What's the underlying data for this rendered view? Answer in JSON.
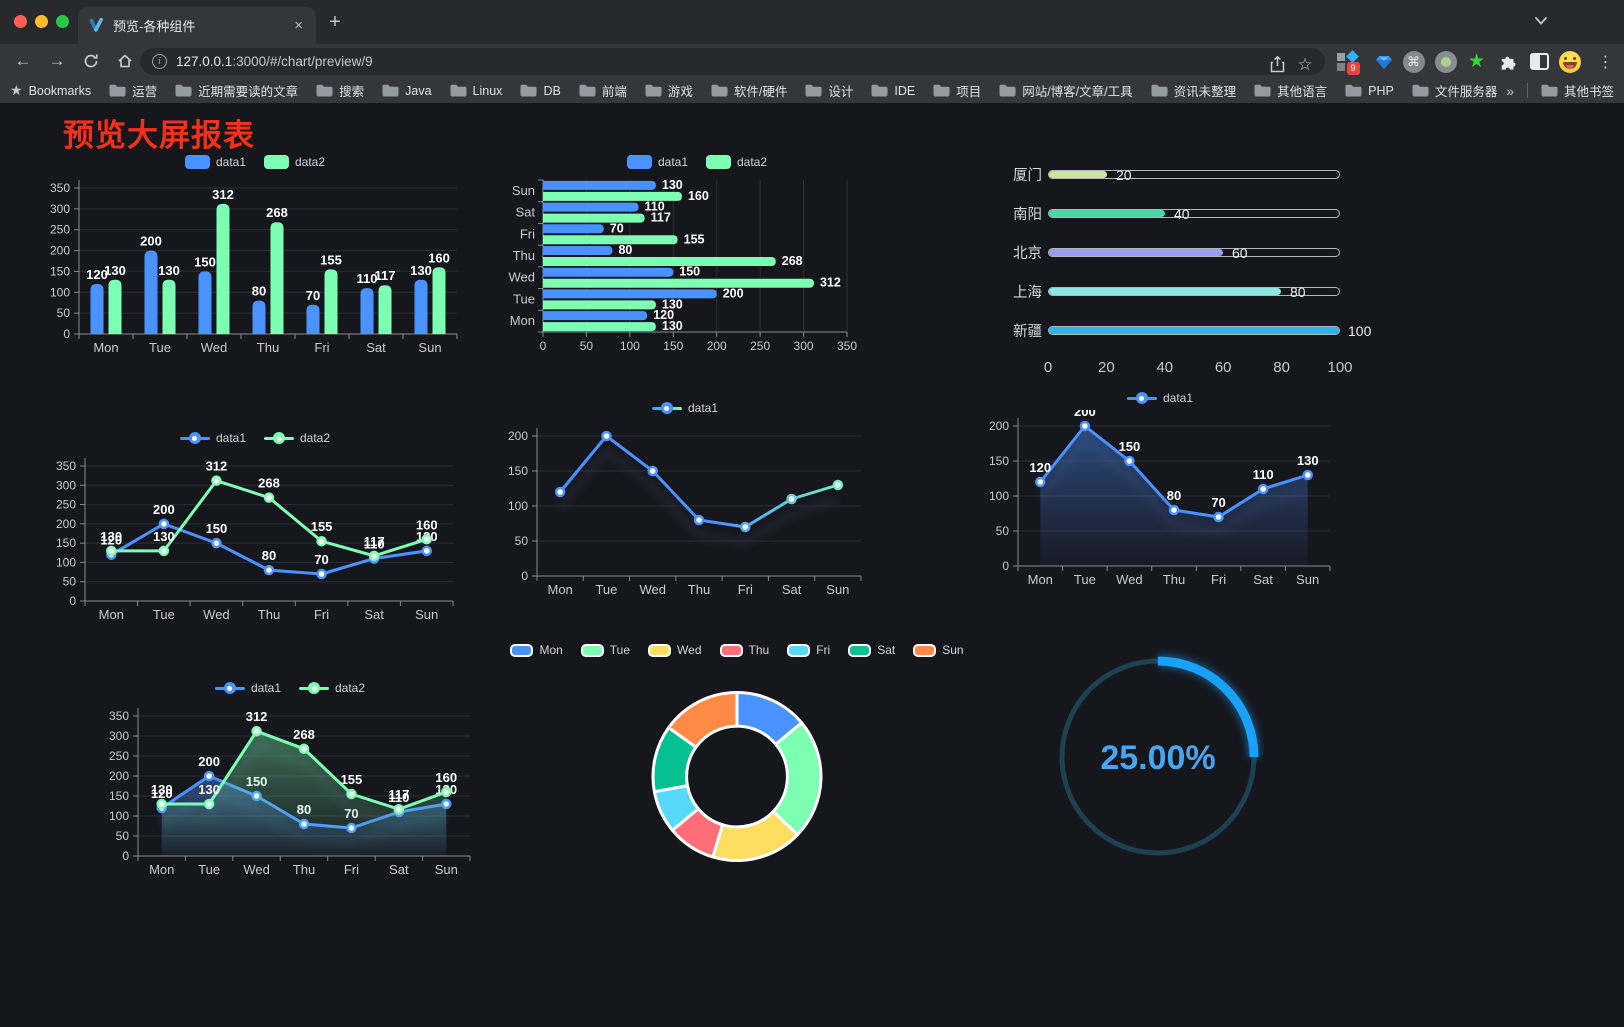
{
  "browser": {
    "window_controls": {
      "close_color": "#ff5f57",
      "minimize_color": "#febc2e",
      "zoom_color": "#28c840"
    },
    "tab": {
      "title": "预览-各种组件"
    },
    "icons": {
      "close": "×",
      "new_tab": "+",
      "back": "←",
      "forward": "→",
      "menu": "⋮",
      "overflow": "»",
      "bookmark_star": "☆",
      "bookmarks_star": "★",
      "command": "⌘",
      "green_star": "★",
      "info": "i"
    },
    "address": {
      "host": "127.0.0.1",
      "rest": ":3000/#/chart/preview/9"
    },
    "extensions": {
      "badge": "9"
    },
    "bookmarks_bar": {
      "star_label": "Bookmarks",
      "folders": [
        "运营",
        "近期需要读的文章",
        "搜索",
        "Java",
        "Linux",
        "DB",
        "前端",
        "游戏",
        "软件/硬件",
        "设计",
        "IDE",
        "项目",
        "网站/博客/文章/工具",
        "资讯未整理",
        "其他语言",
        "PHP",
        "文件服务器"
      ],
      "overflow": "»",
      "other_bookmarks": "其他书签"
    }
  },
  "page": {
    "title": "预览大屏报表",
    "title_color": "#f4301a"
  },
  "colors": {
    "background": "#16161d",
    "chrome_frame": "#28292c",
    "chrome_toolbar": "#35363a",
    "axis_text": "#c9c9d3",
    "grid_line": "#2e2e39",
    "axis_line": "#8a8a94",
    "value_label": "#ffffff",
    "palette": [
      "#4992ff",
      "#7cffb2",
      "#fddd60",
      "#ff6e76",
      "#58d9f9",
      "#05c091",
      "#ff8a45"
    ]
  },
  "chart_data": [
    {
      "id": "grouped-bar-vertical",
      "type": "bar",
      "orientation": "vertical",
      "legend": {
        "icon": "rect",
        "items": [
          {
            "label": "data1",
            "color": "#4992ff"
          },
          {
            "label": "data2",
            "color": "#7cffb2"
          }
        ]
      },
      "categories": [
        "Mon",
        "Tue",
        "Wed",
        "Thu",
        "Fri",
        "Sat",
        "Sun"
      ],
      "series": [
        {
          "name": "data1",
          "color": "#4992ff",
          "values": [
            120,
            200,
            150,
            80,
            70,
            110,
            130
          ]
        },
        {
          "name": "data2",
          "color": "#7cffb2",
          "values": [
            130,
            130,
            312,
            268,
            155,
            117,
            160
          ]
        }
      ],
      "ylim": [
        0,
        350
      ],
      "yticks": [
        0,
        50,
        100,
        150,
        200,
        250,
        300,
        350
      ],
      "value_labels": true,
      "grid": true
    },
    {
      "id": "grouped-bar-horizontal",
      "type": "bar",
      "orientation": "horizontal",
      "category_order": "Mon-at-bottom",
      "legend": {
        "icon": "rect",
        "items": [
          {
            "label": "data1",
            "color": "#4992ff"
          },
          {
            "label": "data2",
            "color": "#7cffb2"
          }
        ]
      },
      "categories": [
        "Mon",
        "Tue",
        "Wed",
        "Thu",
        "Fri",
        "Sat",
        "Sun"
      ],
      "series": [
        {
          "name": "data1",
          "color": "#4992ff",
          "values": [
            120,
            200,
            150,
            80,
            70,
            110,
            130
          ]
        },
        {
          "name": "data2",
          "color": "#7cffb2",
          "values": [
            130,
            130,
            312,
            268,
            155,
            117,
            160
          ]
        }
      ],
      "xlim": [
        0,
        350
      ],
      "xticks": [
        0,
        50,
        100,
        150,
        200,
        250,
        300,
        350
      ],
      "value_labels": true,
      "grid": true
    },
    {
      "id": "capsule-progress",
      "type": "bar",
      "variant": "capsule",
      "orientation": "horizontal",
      "rows": [
        {
          "label": "厦门",
          "value": 20,
          "color": "#c9e59b"
        },
        {
          "label": "南阳",
          "value": 40,
          "color": "#4fd4a3"
        },
        {
          "label": "北京",
          "value": 60,
          "color": "#989ff0"
        },
        {
          "label": "上海",
          "value": 80,
          "color": "#8be7e1"
        },
        {
          "label": "新疆",
          "value": 100,
          "color": "#31b2e3"
        }
      ],
      "xlim": [
        0,
        100
      ],
      "xticks": [
        0,
        20,
        40,
        60,
        80,
        100
      ],
      "value_labels": true
    },
    {
      "id": "line-two-series",
      "type": "line",
      "legend": {
        "icon": "line",
        "items": [
          {
            "label": "data1",
            "color": "#4992ff"
          },
          {
            "label": "data2",
            "color": "#7cffb2"
          }
        ]
      },
      "categories": [
        "Mon",
        "Tue",
        "Wed",
        "Thu",
        "Fri",
        "Sat",
        "Sun"
      ],
      "series": [
        {
          "name": "data1",
          "color": "#4992ff",
          "values": [
            120,
            200,
            150,
            80,
            70,
            110,
            130
          ]
        },
        {
          "name": "data2",
          "color": "#7cffb2",
          "values": [
            130,
            130,
            312,
            268,
            155,
            117,
            160
          ]
        }
      ],
      "ylim": [
        0,
        350
      ],
      "yticks": [
        0,
        50,
        100,
        150,
        200,
        250,
        300,
        350
      ],
      "markers": true,
      "value_labels": true
    },
    {
      "id": "line-gradient",
      "type": "line",
      "shadow": true,
      "legend": {
        "icon": "line",
        "items": [
          {
            "label": "data1",
            "color": [
              "#4992ff",
              "#7cffb2"
            ]
          }
        ]
      },
      "categories": [
        "Mon",
        "Tue",
        "Wed",
        "Thu",
        "Fri",
        "Sat",
        "Sun"
      ],
      "series": [
        {
          "name": "data1",
          "color": [
            "#4992ff",
            "#7cffb2"
          ],
          "values": [
            120,
            200,
            150,
            80,
            70,
            110,
            130
          ]
        }
      ],
      "ylim": [
        0,
        200
      ],
      "yticks": [
        0,
        50,
        100,
        150,
        200
      ],
      "markers": true,
      "value_labels": false
    },
    {
      "id": "line-area",
      "type": "area",
      "shadow": true,
      "legend": {
        "icon": "line",
        "items": [
          {
            "label": "data1",
            "color": "#4992ff"
          }
        ]
      },
      "categories": [
        "Mon",
        "Tue",
        "Wed",
        "Thu",
        "Fri",
        "Sat",
        "Sun"
      ],
      "series": [
        {
          "name": "data1",
          "color": "#4992ff",
          "values": [
            120,
            200,
            150,
            80,
            70,
            110,
            130
          ],
          "area": true
        }
      ],
      "ylim": [
        0,
        200
      ],
      "yticks": [
        0,
        50,
        100,
        150,
        200
      ],
      "markers": true,
      "value_labels": true
    },
    {
      "id": "area-two-series",
      "type": "area",
      "shadow": true,
      "legend": {
        "icon": "line",
        "items": [
          {
            "label": "data1",
            "color": "#4992ff"
          },
          {
            "label": "data2",
            "color": "#7cffb2"
          }
        ]
      },
      "categories": [
        "Mon",
        "Tue",
        "Wed",
        "Thu",
        "Fri",
        "Sat",
        "Sun"
      ],
      "series": [
        {
          "name": "data1",
          "color": "#4992ff",
          "values": [
            120,
            200,
            150,
            80,
            70,
            110,
            130
          ],
          "area": true
        },
        {
          "name": "data2",
          "color": "#7cffb2",
          "values": [
            130,
            130,
            312,
            268,
            155,
            117,
            160
          ],
          "area": true
        }
      ],
      "ylim": [
        0,
        350
      ],
      "yticks": [
        0,
        50,
        100,
        150,
        200,
        250,
        300,
        350
      ],
      "markers": true,
      "value_labels": true
    },
    {
      "id": "donut-week",
      "type": "pie",
      "variant": "donut",
      "border_color": "#ffffff",
      "inner_radius_ratio": 0.6,
      "legend": {
        "icon": "pill",
        "items": [
          {
            "label": "Mon",
            "color": "#4992ff"
          },
          {
            "label": "Tue",
            "color": "#7cffb2"
          },
          {
            "label": "Wed",
            "color": "#fddd60"
          },
          {
            "label": "Thu",
            "color": "#ff6e76"
          },
          {
            "label": "Fri",
            "color": "#58d9f9"
          },
          {
            "label": "Sat",
            "color": "#05c091"
          },
          {
            "label": "Sun",
            "color": "#ff8a45"
          }
        ]
      },
      "items": [
        {
          "label": "Mon",
          "value": 120,
          "color": "#4992ff"
        },
        {
          "label": "Tue",
          "value": 200,
          "color": "#7cffb2"
        },
        {
          "label": "Wed",
          "value": 150,
          "color": "#fddd60"
        },
        {
          "label": "Thu",
          "value": 80,
          "color": "#ff6e76"
        },
        {
          "label": "Fri",
          "value": 70,
          "color": "#58d9f9"
        },
        {
          "label": "Sat",
          "value": 110,
          "color": "#05c091"
        },
        {
          "label": "Sun",
          "value": 130,
          "color": "#ff8a45"
        }
      ]
    },
    {
      "id": "ring-progress",
      "type": "pie",
      "variant": "ring-progress",
      "value": 25,
      "max": 100,
      "label": "25.00%",
      "progress_color": "#18a1f7",
      "track_color": "#1e4152",
      "label_color": "#45a6f1"
    }
  ]
}
